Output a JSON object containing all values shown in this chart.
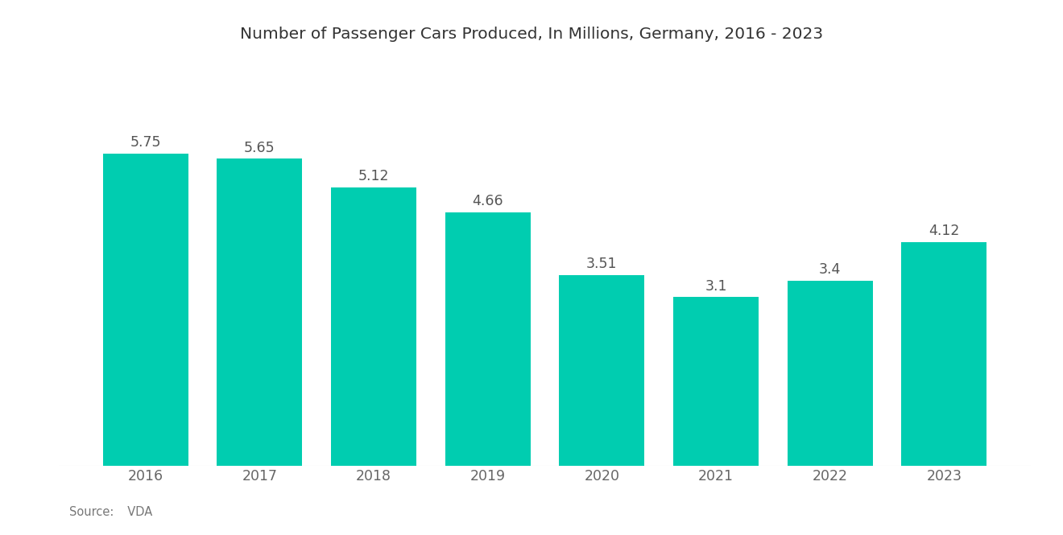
{
  "title": "Number of Passenger Cars Produced, In Millions, Germany, 2016 - 2023",
  "years": [
    2016,
    2017,
    2018,
    2019,
    2020,
    2021,
    2022,
    2023
  ],
  "values": [
    5.75,
    5.65,
    5.12,
    4.66,
    3.51,
    3.1,
    3.4,
    4.12
  ],
  "labels": [
    "5.75",
    "5.65",
    "5.12",
    "4.66",
    "3.51",
    "3.1",
    "3.4",
    "4.12"
  ],
  "bar_color": "#00CDB0",
  "background_color": "#ffffff",
  "title_fontsize": 14.5,
  "label_fontsize": 12.5,
  "tick_fontsize": 12.5,
  "source_label": "Source:",
  "source_value": "  VDA",
  "source_fontsize": 10.5,
  "ylim": [
    0,
    6.8
  ],
  "bar_width": 0.75
}
